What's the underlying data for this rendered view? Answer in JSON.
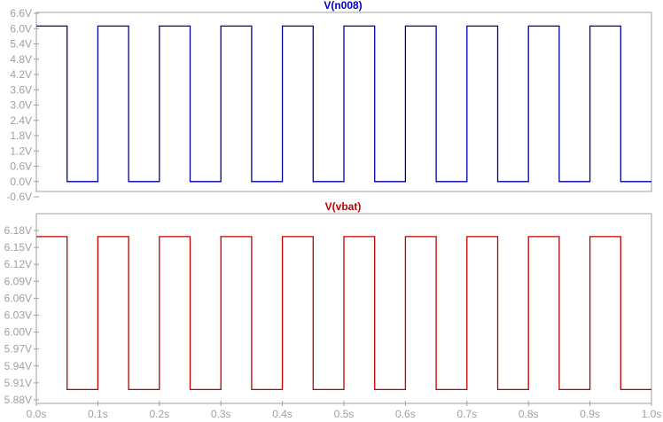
{
  "chart_data": [
    {
      "type": "line",
      "title": "V(n008)",
      "title_color": "#0000c0",
      "line_color": "#0000a0",
      "y_ticks": [
        "6.6V",
        "6.0V",
        "5.4V",
        "4.8V",
        "4.2V",
        "3.6V",
        "3.0V",
        "2.4V",
        "1.8V",
        "1.2V",
        "0.6V",
        "0.0V",
        "-0.6V"
      ],
      "ylim": [
        -0.6,
        6.6
      ],
      "xlim": [
        0.0,
        1.0
      ],
      "grid": false,
      "series": [
        {
          "x": [
            0.0,
            0.05,
            0.05,
            0.1,
            0.1,
            0.15,
            0.15,
            0.2,
            0.2,
            0.25,
            0.25,
            0.3,
            0.3,
            0.35,
            0.35,
            0.4,
            0.4,
            0.45,
            0.45,
            0.5,
            0.5,
            0.55,
            0.55,
            0.6,
            0.6,
            0.65,
            0.65,
            0.7,
            0.7,
            0.75,
            0.75,
            0.8,
            0.8,
            0.85,
            0.85,
            0.9,
            0.9,
            0.95,
            0.95,
            1.0
          ],
          "y": [
            6.1,
            6.1,
            0.0,
            0.0,
            6.1,
            6.1,
            0.0,
            0.0,
            6.1,
            6.1,
            0.0,
            0.0,
            6.1,
            6.1,
            0.0,
            0.0,
            6.1,
            6.1,
            0.0,
            0.0,
            6.1,
            6.1,
            0.0,
            0.0,
            6.1,
            6.1,
            0.0,
            0.0,
            6.1,
            6.1,
            0.0,
            0.0,
            6.1,
            6.1,
            0.0,
            0.0,
            6.1,
            6.1,
            0.0,
            0.0
          ]
        }
      ]
    },
    {
      "type": "line",
      "title": "V(vbat)",
      "title_color": "#c00000",
      "line_color": "#c00000",
      "y_ticks": [
        "6.18V",
        "6.15V",
        "6.12V",
        "6.09V",
        "6.06V",
        "6.03V",
        "6.00V",
        "5.97V",
        "5.94V",
        "5.91V",
        "5.88V"
      ],
      "ylim": [
        5.88,
        6.21
      ],
      "xlim": [
        0.0,
        1.0
      ],
      "grid": false,
      "x_ticks": [
        "0.0s",
        "0.1s",
        "0.2s",
        "0.3s",
        "0.4s",
        "0.5s",
        "0.6s",
        "0.7s",
        "0.8s",
        "0.9s",
        "1.0s"
      ],
      "series": [
        {
          "x": [
            0.0,
            0.05,
            0.05,
            0.1,
            0.1,
            0.15,
            0.15,
            0.2,
            0.2,
            0.25,
            0.25,
            0.3,
            0.3,
            0.35,
            0.35,
            0.4,
            0.4,
            0.45,
            0.45,
            0.5,
            0.5,
            0.55,
            0.55,
            0.6,
            0.6,
            0.65,
            0.65,
            0.7,
            0.7,
            0.75,
            0.75,
            0.8,
            0.8,
            0.85,
            0.85,
            0.9,
            0.9,
            0.95,
            0.95,
            1.0
          ],
          "y": [
            6.198,
            6.198,
            5.9,
            5.9,
            6.198,
            6.198,
            5.9,
            5.9,
            6.198,
            6.198,
            5.9,
            5.9,
            6.198,
            6.198,
            5.9,
            5.9,
            6.198,
            6.198,
            5.9,
            5.9,
            6.198,
            6.198,
            5.9,
            5.9,
            6.198,
            6.198,
            5.9,
            5.9,
            6.198,
            6.198,
            5.9,
            5.9,
            6.198,
            6.198,
            5.9,
            5.9,
            6.198,
            6.198,
            5.9,
            5.9
          ]
        }
      ]
    }
  ]
}
